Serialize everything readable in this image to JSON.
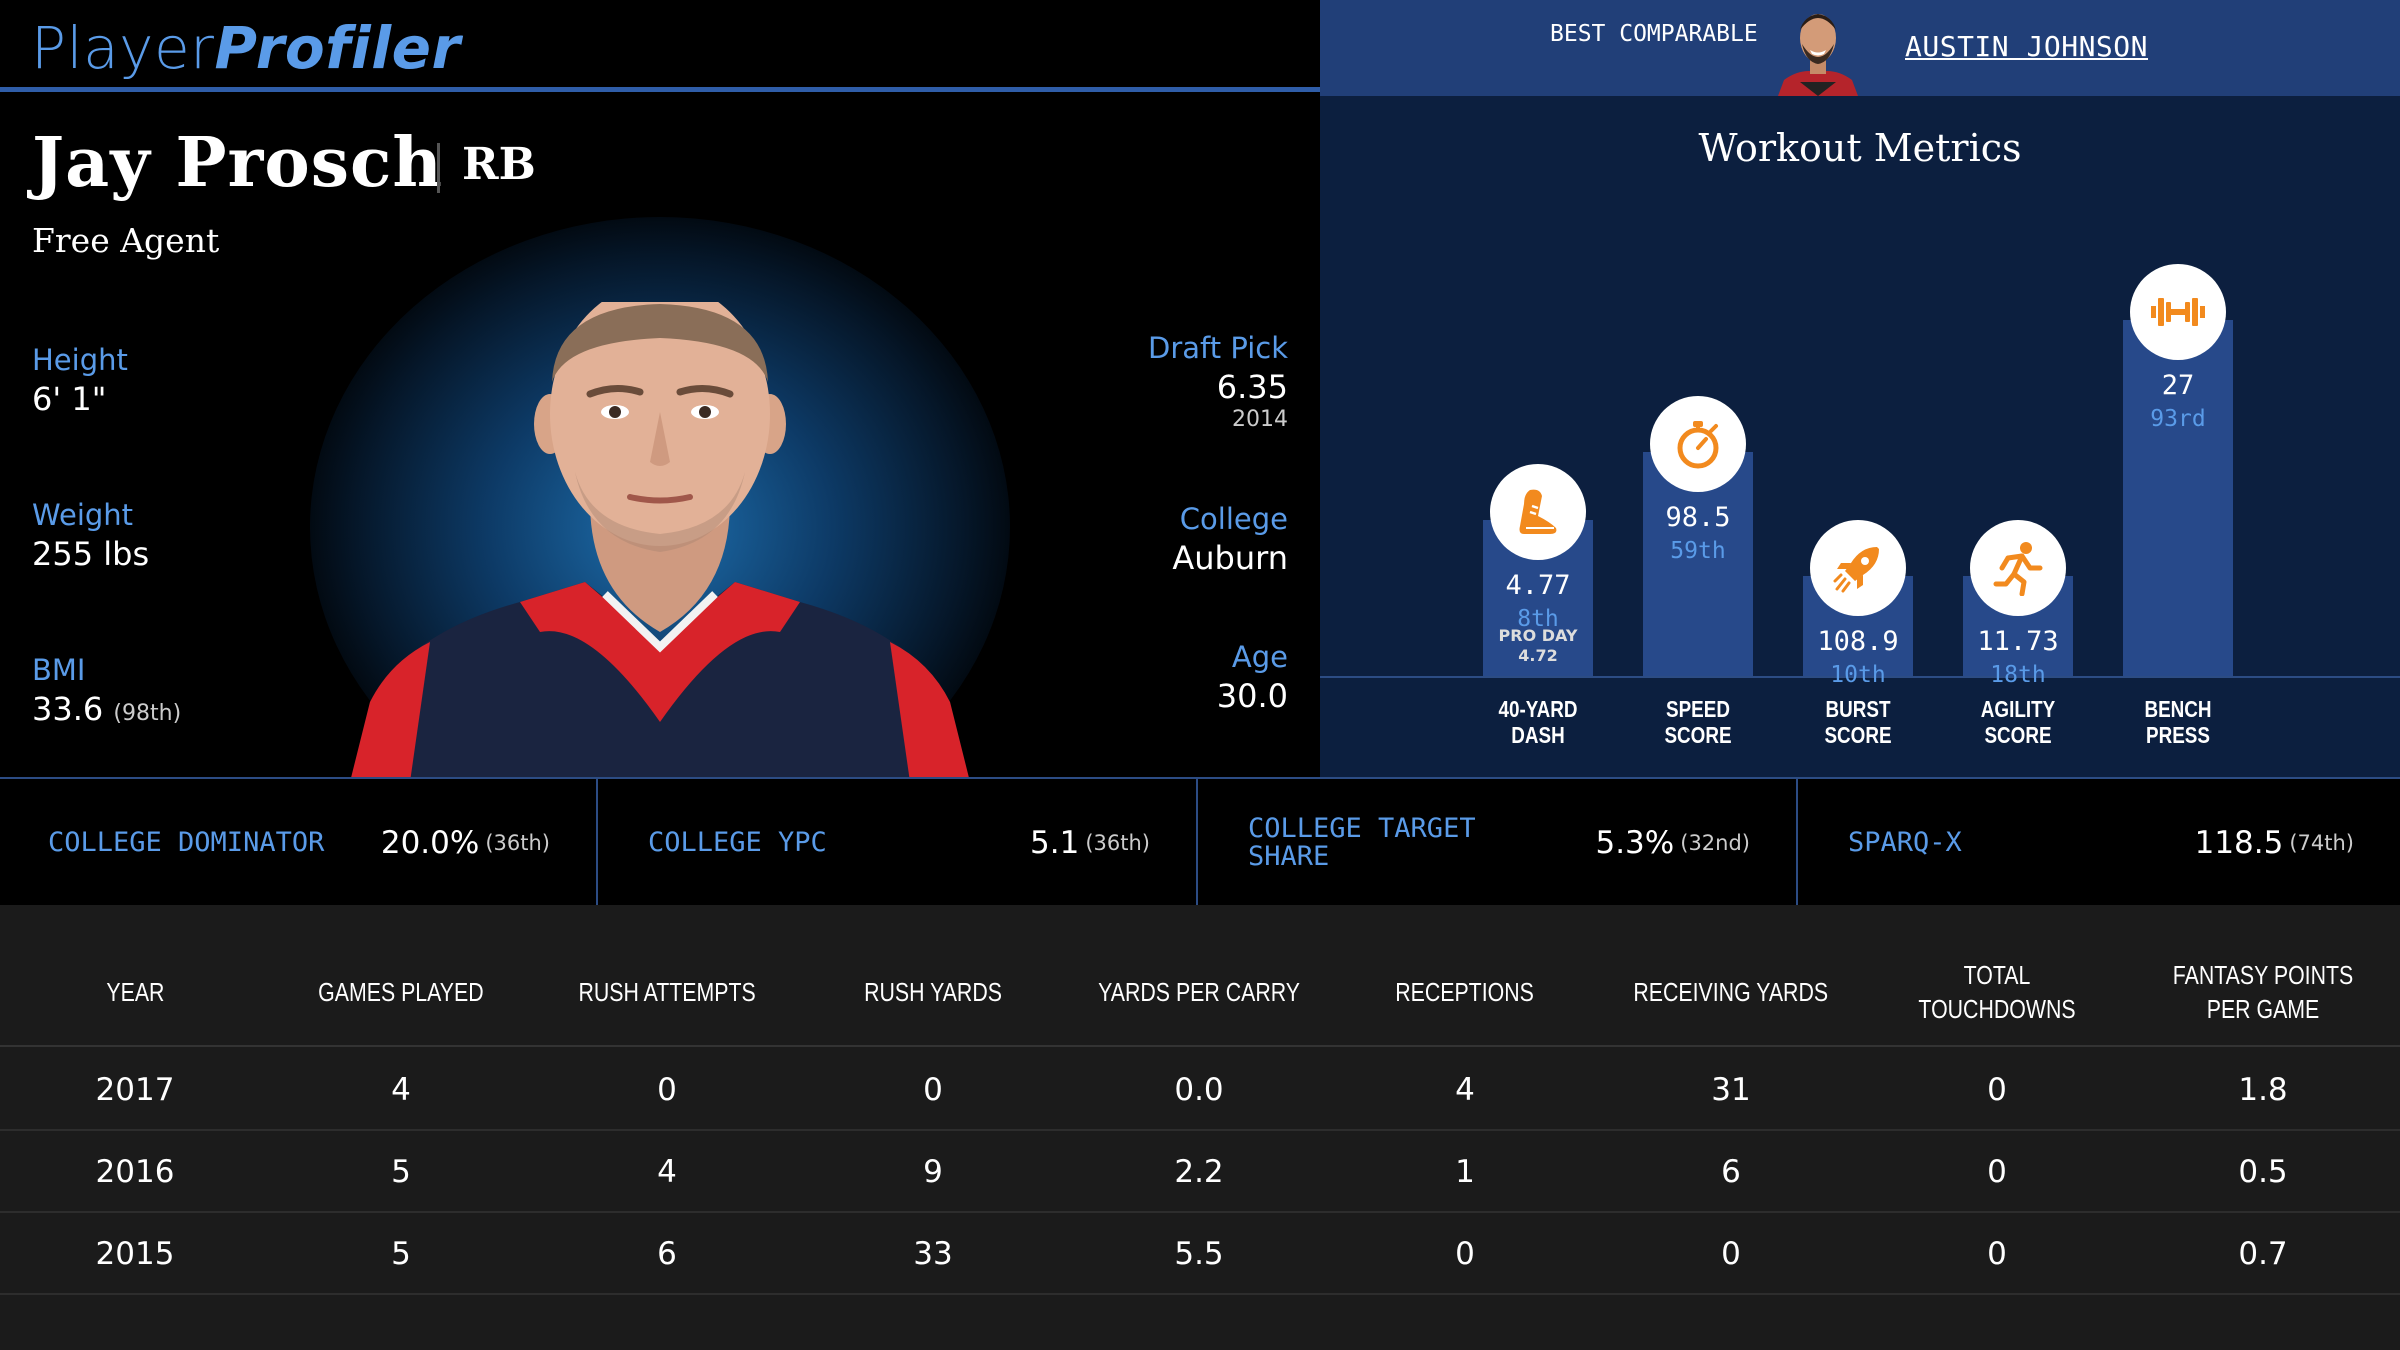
{
  "brand": {
    "part1": "Player",
    "part2": "Profiler"
  },
  "comparable": {
    "label": "BEST COMPARABLE",
    "name": "AUSTIN JOHNSON"
  },
  "player": {
    "name": "Jay Prosch",
    "position": "RB",
    "team": "Free Agent",
    "height": {
      "label": "Height",
      "value": "6' 1\""
    },
    "weight": {
      "label": "Weight",
      "value": "255 lbs"
    },
    "bmi": {
      "label": "BMI",
      "value": "33.6",
      "rank": "(98th)"
    },
    "draft": {
      "label": "Draft Pick",
      "value": "6.35",
      "year": "2014"
    },
    "college": {
      "label": "College",
      "value": "Auburn"
    },
    "age": {
      "label": "Age",
      "value": "30.0"
    }
  },
  "workout": {
    "title": "Workout Metrics",
    "metrics": [
      {
        "label1": "40-YARD",
        "label2": "DASH",
        "value": "4.77",
        "rank": "8th",
        "pro_day_label": "PRO DAY",
        "pro_day_value": "4.72",
        "icon": "shoe-icon",
        "fill": 0.39
      },
      {
        "label1": "SPEED",
        "label2": "SCORE",
        "value": "98.5",
        "rank": "59th",
        "icon": "stopwatch-icon",
        "fill": 0.56
      },
      {
        "label1": "BURST",
        "label2": "SCORE",
        "value": "108.9",
        "rank": "10th",
        "icon": "rocket-icon",
        "fill": 0.25
      },
      {
        "label1": "AGILITY",
        "label2": "SCORE",
        "value": "11.73",
        "rank": "18th",
        "icon": "runner-icon",
        "fill": 0.25
      },
      {
        "label1": "BENCH",
        "label2": "PRESS",
        "value": "27",
        "rank": "93rd",
        "icon": "dumbbell-icon",
        "fill": 0.89
      }
    ]
  },
  "college_stats": [
    {
      "label": "COLLEGE DOMINATOR",
      "value": "20.0%",
      "rank": "(36th)"
    },
    {
      "label": "COLLEGE YPC",
      "value": "5.1",
      "rank": "(36th)"
    },
    {
      "label": "COLLEGE TARGET SHARE",
      "value": "5.3%",
      "rank": "(32nd)"
    },
    {
      "label": "SPARQ-X",
      "value": "118.5",
      "rank": "(74th)"
    }
  ],
  "table": {
    "headers": [
      "YEAR",
      "GAMES PLAYED",
      "RUSH ATTEMPTS",
      "RUSH YARDS",
      "YARDS PER CARRY",
      "RECEPTIONS",
      "RECEIVING YARDS",
      "TOTAL TOUCHDOWNS",
      "FANTASY POINTS PER GAME"
    ],
    "rows": [
      [
        "2017",
        "4",
        "0",
        "0",
        "0.0",
        "4",
        "31",
        "0",
        "1.8"
      ],
      [
        "2016",
        "5",
        "4",
        "9",
        "2.2",
        "1",
        "6",
        "0",
        "0.5"
      ],
      [
        "2015",
        "5",
        "6",
        "33",
        "5.5",
        "0",
        "0",
        "0",
        "0.7"
      ]
    ]
  },
  "colors": {
    "accent": "#5a9be8",
    "bar": "#27498a",
    "panel": "#0c1f3f",
    "icon": "#f28a1e",
    "jersey_red": "#d8232a",
    "jersey_navy": "#1a2440"
  }
}
